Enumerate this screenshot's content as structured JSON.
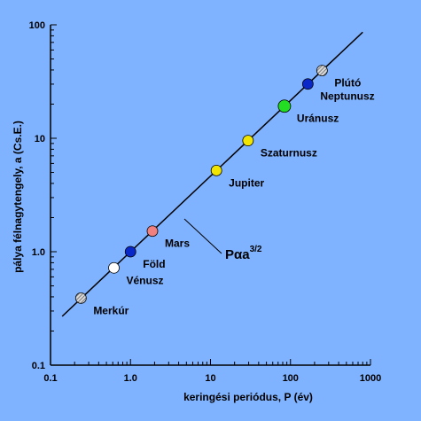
{
  "chart_data": {
    "type": "scatter",
    "title": "",
    "xlabel": "keringési periódus, P (év)",
    "ylabel": "pálya félnagytengely, a (Cs.E.)",
    "xscale": "log",
    "yscale": "log",
    "xlim": [
      0.1,
      1000
    ],
    "ylim": [
      0.1,
      100
    ],
    "x_ticks": [
      {
        "value": 0.1,
        "label": "0.1"
      },
      {
        "value": 1,
        "label": "1.0"
      },
      {
        "value": 10,
        "label": "10"
      },
      {
        "value": 100,
        "label": "100"
      },
      {
        "value": 1000,
        "label": "1000"
      }
    ],
    "y_ticks": [
      {
        "value": 0.1,
        "label": "0.1"
      },
      {
        "value": 1,
        "label": "1.0"
      },
      {
        "value": 10,
        "label": "10"
      },
      {
        "value": 100,
        "label": "100"
      }
    ],
    "grid": false,
    "fit_line": {
      "x_range": [
        0.14,
        800
      ],
      "relation": "a = P^(2/3)"
    },
    "formula": {
      "base": "Pαa",
      "exponent": "3/2"
    },
    "points": [
      {
        "name": "Merkúr",
        "x": 0.24,
        "y": 0.39,
        "color": "#a0a0a0",
        "pattern": "hatched"
      },
      {
        "name": "Vénusz",
        "x": 0.62,
        "y": 0.72,
        "color": "#ffffff",
        "pattern": "solid"
      },
      {
        "name": "Föld",
        "x": 1.0,
        "y": 1.0,
        "color": "#0a28c8",
        "pattern": "solid"
      },
      {
        "name": "Mars",
        "x": 1.88,
        "y": 1.52,
        "color": "#f08080",
        "pattern": "solid"
      },
      {
        "name": "Jupiter",
        "x": 11.86,
        "y": 5.2,
        "color": "#f2e600",
        "pattern": "solid"
      },
      {
        "name": "Szaturnusz",
        "x": 29.46,
        "y": 9.54,
        "color": "#f2e600",
        "pattern": "solid"
      },
      {
        "name": "Uránusz",
        "x": 84.0,
        "y": 19.2,
        "color": "#22dd22",
        "pattern": "solid"
      },
      {
        "name": "Neptunusz",
        "x": 164.8,
        "y": 30.1,
        "color": "#0a28c8",
        "pattern": "solid"
      },
      {
        "name": "Plútó",
        "x": 248.0,
        "y": 39.5,
        "color": "#a0a0a0",
        "pattern": "hatched"
      }
    ]
  }
}
